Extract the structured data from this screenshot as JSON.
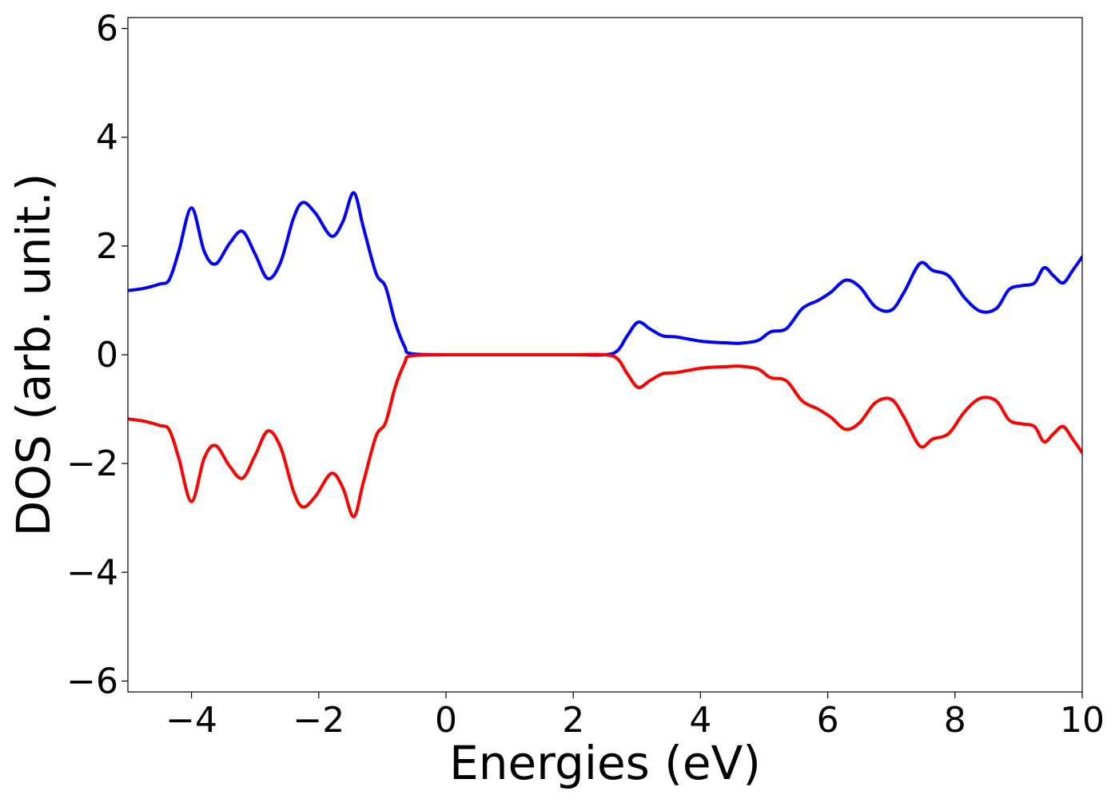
{
  "chart_data": {
    "type": "line",
    "title": "",
    "xlabel": "Energies (eV)",
    "ylabel": "DOS (arb. unit.)",
    "xlim": [
      -5,
      10
    ],
    "ylim": [
      -6.2,
      6.2
    ],
    "grid": false,
    "xticks": [
      {
        "value": -4,
        "label": "−4"
      },
      {
        "value": -2,
        "label": "−2"
      },
      {
        "value": 0,
        "label": "0"
      },
      {
        "value": 2,
        "label": "2"
      },
      {
        "value": 4,
        "label": "4"
      },
      {
        "value": 6,
        "label": "6"
      },
      {
        "value": 8,
        "label": "8"
      },
      {
        "value": 10,
        "label": "10"
      }
    ],
    "yticks": [
      {
        "value": -6,
        "label": "−6"
      },
      {
        "value": -4,
        "label": "−4"
      },
      {
        "value": -2,
        "label": "−2"
      },
      {
        "value": 0,
        "label": "0"
      },
      {
        "value": 2,
        "label": "2"
      },
      {
        "value": 4,
        "label": "4"
      },
      {
        "value": 6,
        "label": "6"
      }
    ],
    "x": [
      -5.0,
      -4.75,
      -4.5,
      -4.35,
      -4.2,
      -4.0,
      -3.8,
      -3.62,
      -3.4,
      -3.2,
      -3.0,
      -2.8,
      -2.6,
      -2.4,
      -2.25,
      -2.05,
      -1.8,
      -1.62,
      -1.45,
      -1.3,
      -1.1,
      -0.95,
      -0.8,
      -0.65,
      -0.55,
      0.0,
      1.0,
      2.0,
      2.5,
      2.7,
      2.85,
      3.02,
      3.2,
      3.4,
      3.6,
      3.8,
      4.0,
      4.2,
      4.4,
      4.6,
      4.9,
      5.1,
      5.35,
      5.6,
      5.85,
      6.05,
      6.28,
      6.5,
      6.75,
      7.0,
      7.2,
      7.45,
      7.65,
      7.9,
      8.15,
      8.4,
      8.65,
      8.85,
      9.05,
      9.25,
      9.4,
      9.55,
      9.7,
      9.85,
      10.0
    ],
    "series": [
      {
        "color": "#0000ff",
        "values": [
          1.18,
          1.22,
          1.3,
          1.38,
          1.9,
          2.7,
          1.9,
          1.67,
          2.05,
          2.27,
          1.85,
          1.4,
          1.7,
          2.5,
          2.8,
          2.6,
          2.18,
          2.45,
          2.98,
          2.35,
          1.5,
          1.25,
          0.6,
          0.15,
          0.02,
          0.0,
          0.0,
          0.0,
          0.0,
          0.08,
          0.35,
          0.6,
          0.48,
          0.35,
          0.33,
          0.29,
          0.25,
          0.23,
          0.22,
          0.21,
          0.26,
          0.42,
          0.48,
          0.85,
          1.0,
          1.15,
          1.37,
          1.25,
          0.88,
          0.82,
          1.15,
          1.68,
          1.55,
          1.45,
          1.05,
          0.8,
          0.85,
          1.2,
          1.27,
          1.32,
          1.6,
          1.45,
          1.32,
          1.55,
          1.8
        ]
      },
      {
        "color": "#ff0000",
        "values": [
          -1.18,
          -1.22,
          -1.3,
          -1.38,
          -1.9,
          -2.7,
          -1.9,
          -1.67,
          -2.05,
          -2.27,
          -1.85,
          -1.4,
          -1.7,
          -2.5,
          -2.8,
          -2.6,
          -2.18,
          -2.45,
          -2.98,
          -2.35,
          -1.5,
          -1.25,
          -0.6,
          -0.15,
          -0.02,
          0.0,
          0.0,
          0.0,
          0.0,
          -0.08,
          -0.35,
          -0.6,
          -0.48,
          -0.35,
          -0.33,
          -0.29,
          -0.25,
          -0.23,
          -0.22,
          -0.21,
          -0.26,
          -0.42,
          -0.48,
          -0.85,
          -1.0,
          -1.15,
          -1.37,
          -1.25,
          -0.88,
          -0.82,
          -1.15,
          -1.68,
          -1.55,
          -1.45,
          -1.05,
          -0.8,
          -0.85,
          -1.2,
          -1.27,
          -1.32,
          -1.6,
          -1.45,
          -1.32,
          -1.55,
          -1.8
        ]
      }
    ]
  }
}
